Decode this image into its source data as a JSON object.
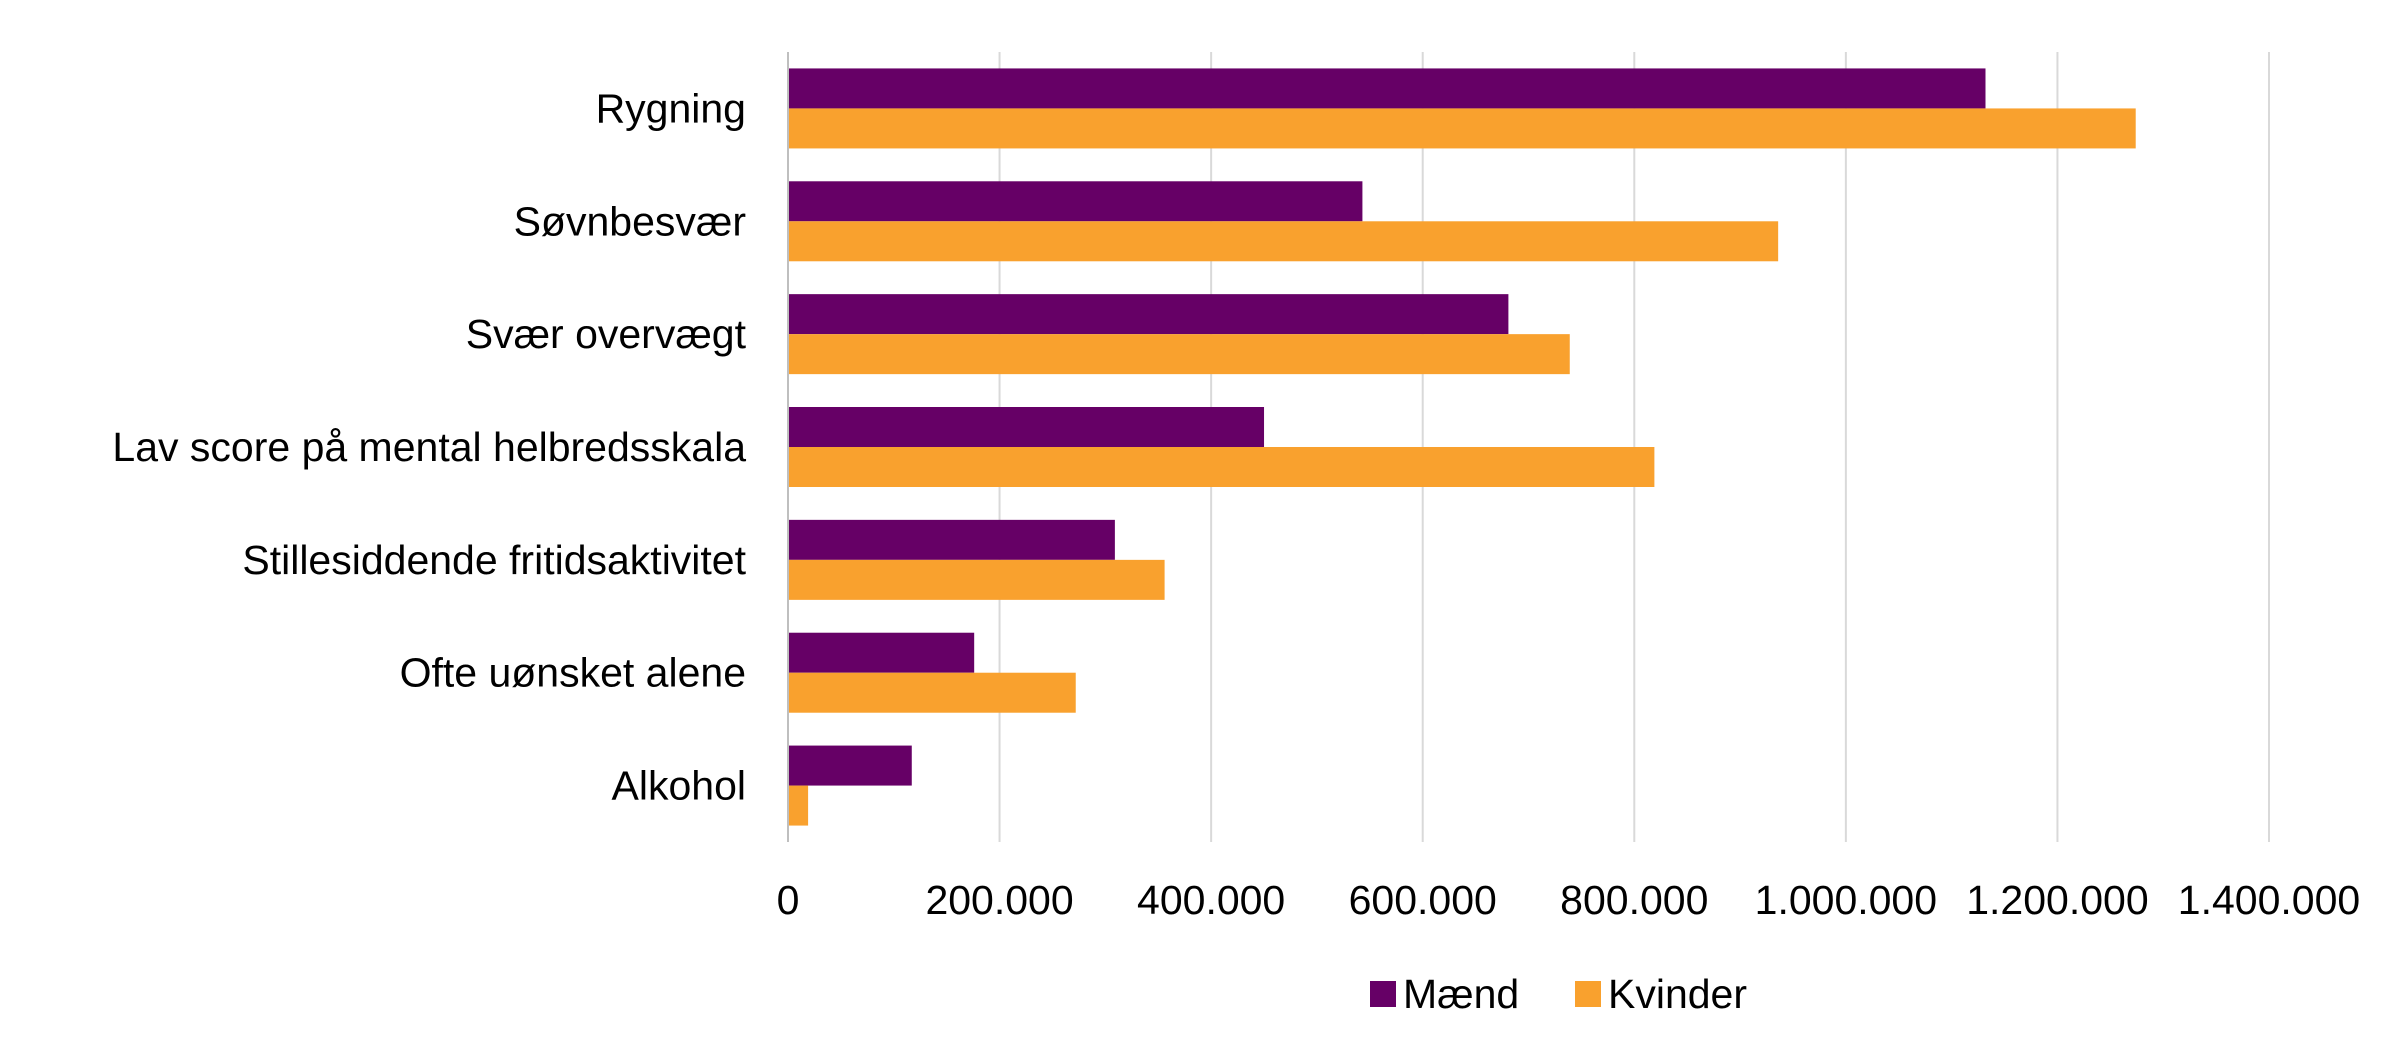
{
  "chart_data": {
    "type": "bar",
    "orientation": "horizontal",
    "title": "",
    "xlabel": "",
    "ylabel": "",
    "categories": [
      "Rygning",
      "Søvnbesvær",
      "Svær overvægt",
      "Lav score på mental helbredsskala",
      "Stillesiddende fritidsaktivitet",
      "Ofte uønsket alene",
      "Alkohol"
    ],
    "series": [
      {
        "name": "Mænd",
        "color": "#660066",
        "values": [
          1132000,
          543000,
          681000,
          450000,
          309000,
          176000,
          117000
        ]
      },
      {
        "name": "Kvinder",
        "color": "#F9A12E",
        "values": [
          1274000,
          936000,
          739000,
          819000,
          356000,
          272000,
          19000
        ]
      }
    ],
    "xlim": [
      0,
      1400000
    ],
    "xticks": [
      0,
      200000,
      400000,
      600000,
      800000,
      1000000,
      1200000,
      1400000
    ],
    "xtick_labels": [
      "0",
      "200.000",
      "400.000",
      "600.000",
      "800.000",
      "1.000.000",
      "1.200.000",
      "1.400.000"
    ],
    "grid": true,
    "legend_position": "bottom"
  }
}
